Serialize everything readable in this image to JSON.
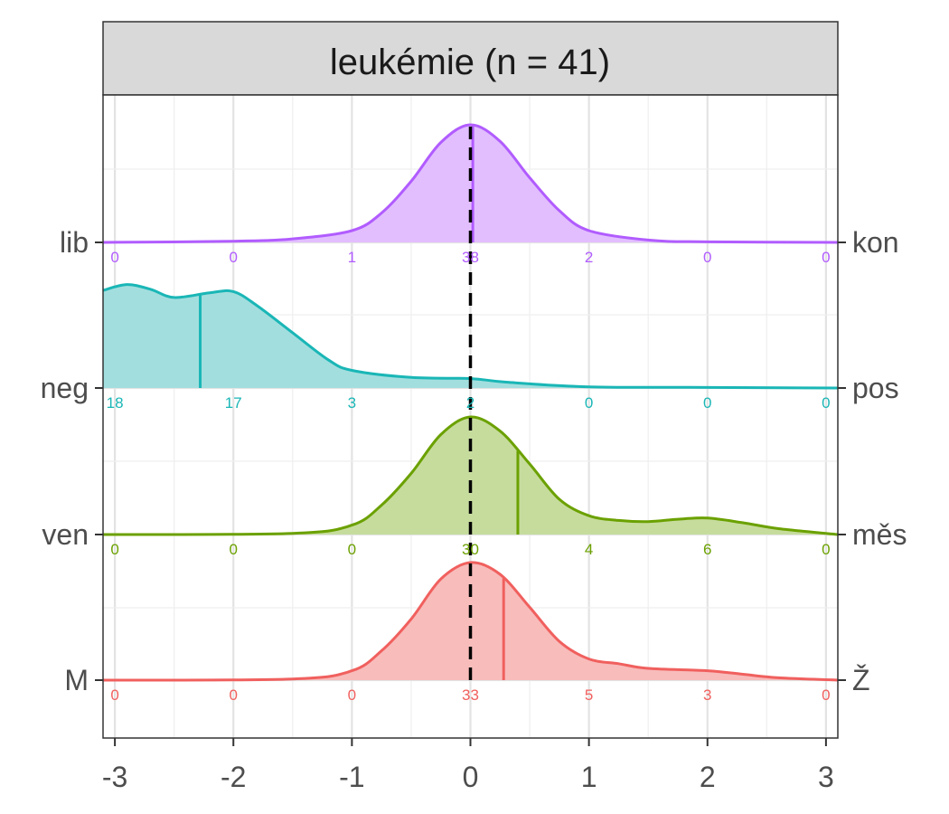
{
  "panel": {
    "title": "leukémie (n = 41)"
  },
  "chart_data": {
    "type": "area",
    "subtype": "ridgeline-density",
    "title": "leukémie (n = 41)",
    "xlabel": "",
    "ylabel": "",
    "xlim": [
      -3.1,
      3.1
    ],
    "x_ticks": [
      "-3",
      "-2",
      "-1",
      "0",
      "1",
      "2",
      "3"
    ],
    "x_tick_values": [
      -3,
      -2,
      -1,
      0,
      1,
      2,
      3
    ],
    "count_positions": [
      -3,
      -2,
      -1,
      0,
      1,
      2,
      3
    ],
    "reference_line": 0,
    "grid": true,
    "series": [
      {
        "left_label": "lib",
        "right_label": "kon",
        "color": "#B15CFF",
        "fill": "#E2BEFF",
        "mean": 0.02,
        "counts": [
          0,
          0,
          1,
          38,
          2,
          0,
          0
        ],
        "density_x": [
          -3.1,
          -2,
          -1.5,
          -1,
          -0.75,
          -0.5,
          -0.25,
          0,
          0.25,
          0.5,
          0.75,
          1,
          1.5,
          2,
          3.1
        ],
        "density_y": [
          0,
          0.01,
          0.03,
          0.1,
          0.25,
          0.52,
          0.85,
          1.0,
          0.86,
          0.55,
          0.27,
          0.1,
          0.02,
          0.005,
          0
        ]
      },
      {
        "left_label": "neg",
        "right_label": "pos",
        "color": "#1AB6B6",
        "fill": "#A3DEDE",
        "mean": -2.28,
        "counts": [
          18,
          17,
          3,
          2,
          0,
          0,
          0
        ],
        "density_x": [
          -3.1,
          -2.9,
          -2.7,
          -2.5,
          -2.2,
          -2.0,
          -1.8,
          -1.5,
          -1.2,
          -1.0,
          -0.5,
          0,
          0.3,
          1,
          2,
          3.1
        ],
        "density_y": [
          0.83,
          0.88,
          0.84,
          0.77,
          0.81,
          0.82,
          0.7,
          0.47,
          0.24,
          0.15,
          0.09,
          0.08,
          0.05,
          0.01,
          0.005,
          0
        ]
      },
      {
        "left_label": "ven",
        "right_label": "měs",
        "color": "#6BA100",
        "fill": "#C6DC9D",
        "mean": 0.4,
        "counts": [
          0,
          0,
          0,
          30,
          4,
          6,
          0
        ],
        "density_x": [
          -3.1,
          -1.5,
          -1.0,
          -0.75,
          -0.5,
          -0.25,
          0,
          0.25,
          0.5,
          0.75,
          1.0,
          1.25,
          1.5,
          1.75,
          2.0,
          2.3,
          2.6,
          3.1
        ],
        "density_y": [
          0,
          0.01,
          0.08,
          0.25,
          0.52,
          0.85,
          1.0,
          0.88,
          0.6,
          0.3,
          0.16,
          0.12,
          0.11,
          0.13,
          0.14,
          0.1,
          0.05,
          0
        ]
      },
      {
        "left_label": "M",
        "right_label": "Ž",
        "color": "#F0605E",
        "fill": "#F8BCBB",
        "mean": 0.28,
        "counts": [
          0,
          0,
          0,
          33,
          5,
          3,
          0
        ],
        "density_x": [
          -3.1,
          -1.5,
          -1.0,
          -0.75,
          -0.5,
          -0.25,
          0,
          0.25,
          0.5,
          0.75,
          1.0,
          1.25,
          1.5,
          2.0,
          2.3,
          2.6,
          3.1
        ],
        "density_y": [
          0,
          0.01,
          0.08,
          0.25,
          0.52,
          0.86,
          1.0,
          0.9,
          0.62,
          0.33,
          0.18,
          0.14,
          0.1,
          0.08,
          0.05,
          0.02,
          0
        ]
      }
    ]
  }
}
